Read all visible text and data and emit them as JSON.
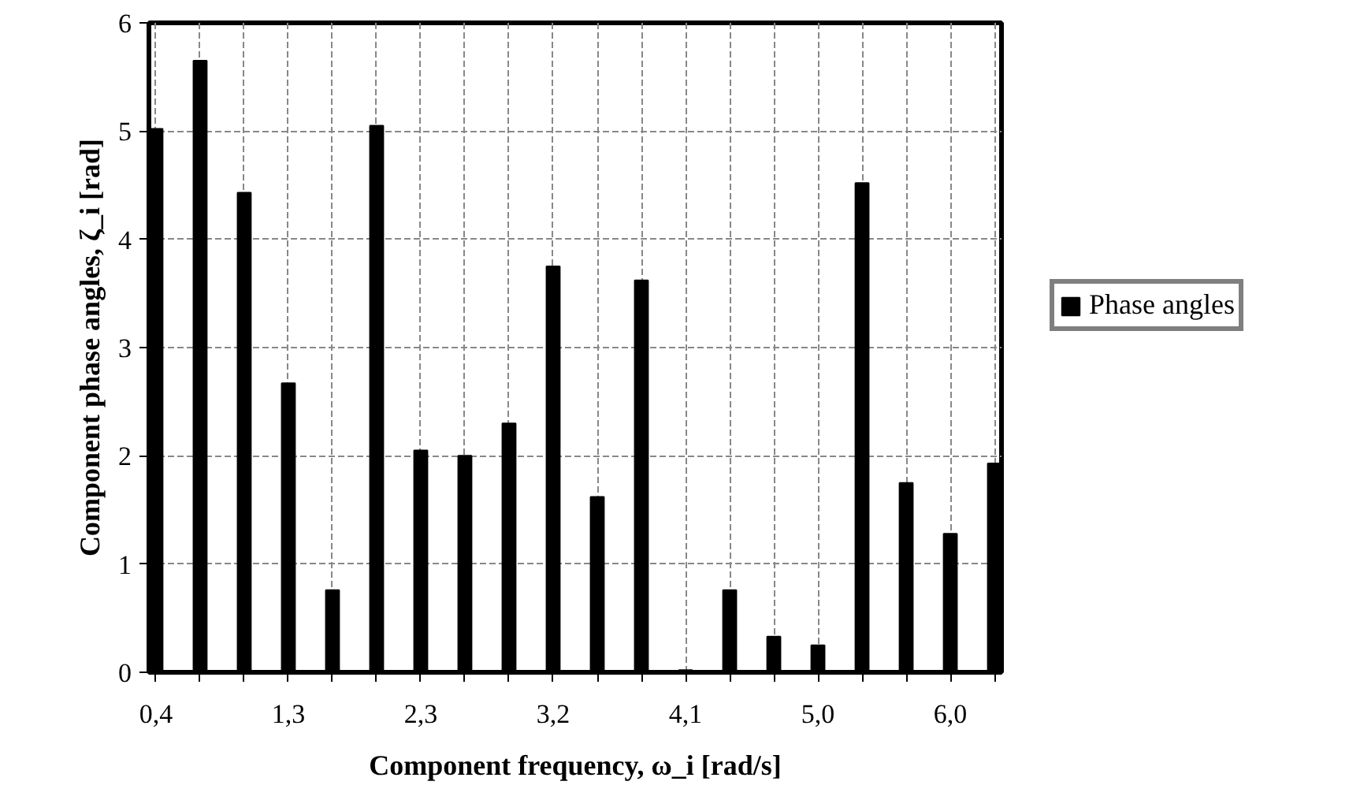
{
  "chart_data": {
    "type": "bar",
    "xlabel": "Component frequency, ω_i [rad/s]",
    "ylabel": "Component phase angles, ζ_i [rad]",
    "categories": [
      "0,4",
      null,
      null,
      "1,3",
      null,
      null,
      "2,3",
      null,
      null,
      "3,2",
      null,
      null,
      "4,1",
      null,
      null,
      "5,0",
      null,
      null,
      "6,0",
      null
    ],
    "series": [
      {
        "name": "Phase angles",
        "color": "#000000",
        "values": [
          5.02,
          5.65,
          4.43,
          2.67,
          0.76,
          5.05,
          2.05,
          2.0,
          2.3,
          3.75,
          1.62,
          3.62,
          0.02,
          0.76,
          0.33,
          0.25,
          4.52,
          1.75,
          1.28,
          1.93
        ]
      }
    ],
    "ylim": [
      0,
      6
    ],
    "yticks": [
      0,
      1,
      2,
      3,
      4,
      5,
      6
    ],
    "grid": true,
    "legend": "right"
  }
}
